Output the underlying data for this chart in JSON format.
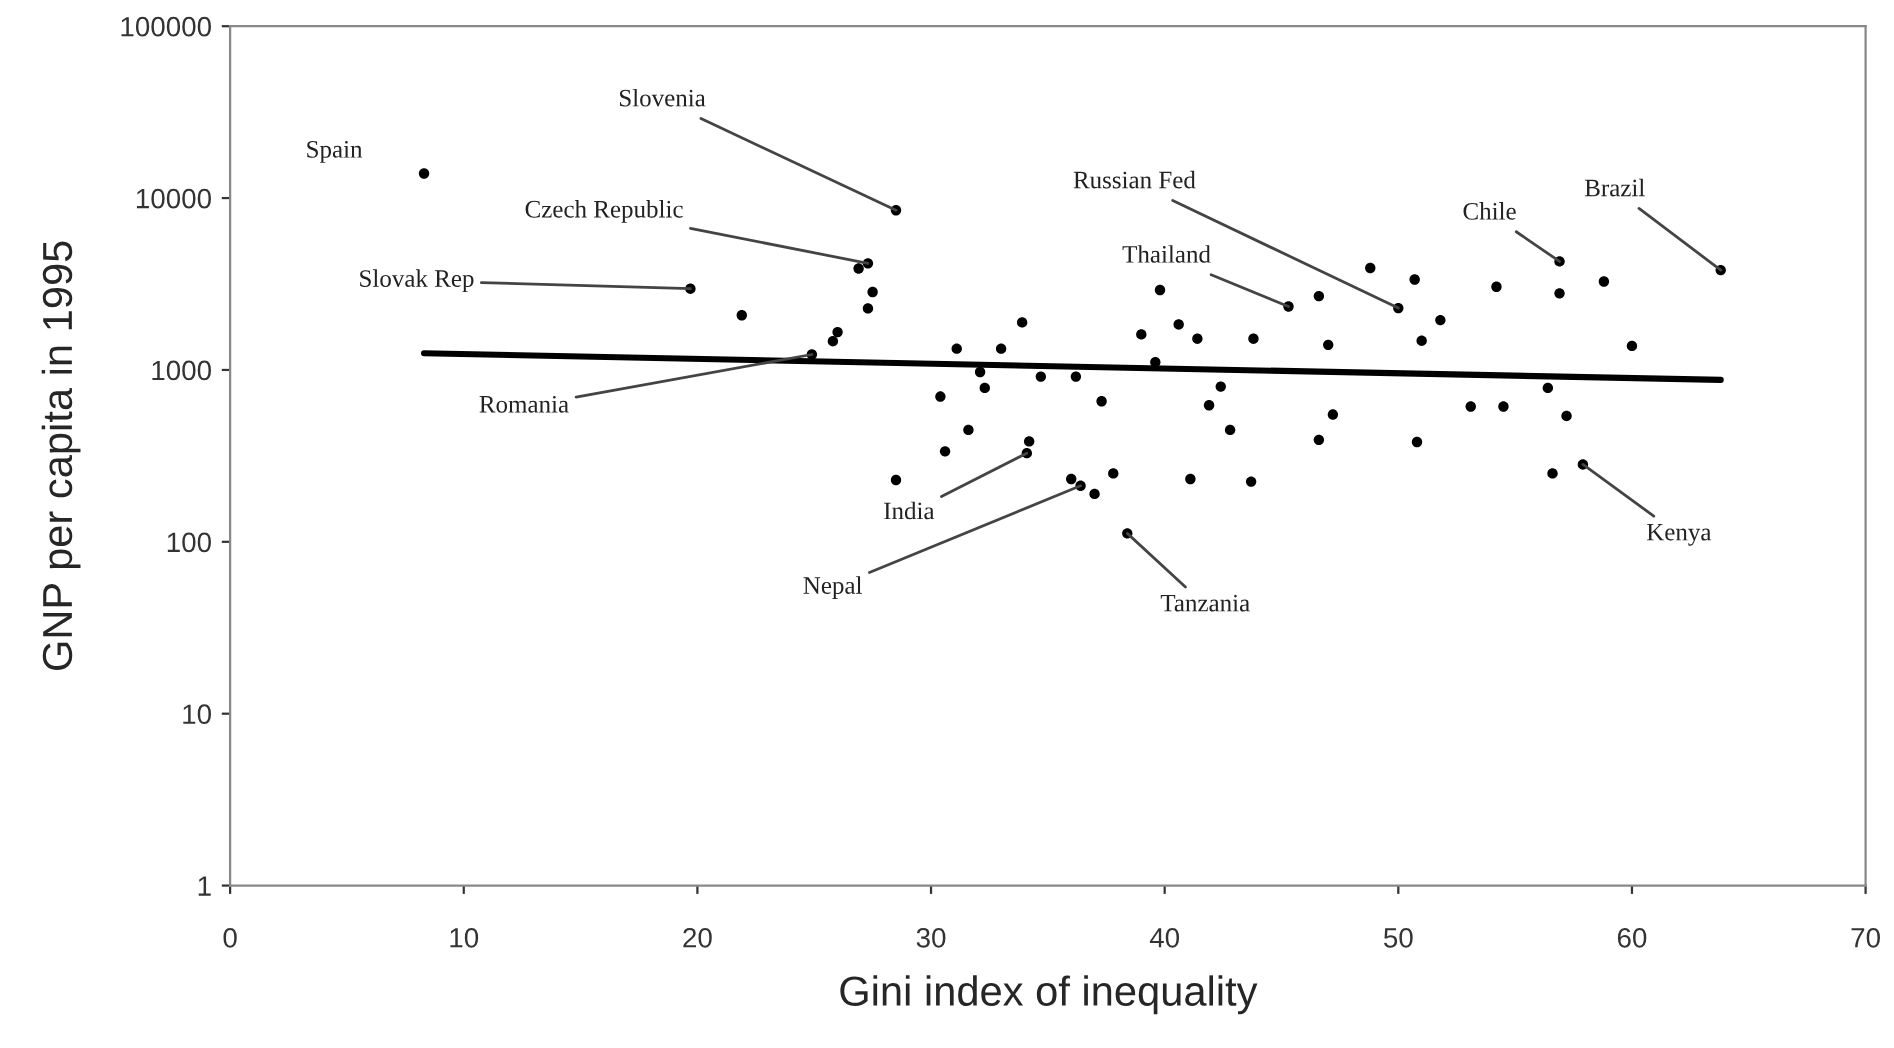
{
  "chart_data": {
    "type": "scatter",
    "xlabel": "Gini index of inequality",
    "ylabel": "GNP per capita in 1995",
    "xlim": [
      0,
      70
    ],
    "xticks": [
      0,
      10,
      20,
      30,
      40,
      50,
      60,
      70
    ],
    "ylim": [
      1,
      100000
    ],
    "yticks": [
      1,
      10,
      100,
      1000,
      10000,
      100000
    ],
    "log": "y",
    "grid": false,
    "marker": "circle",
    "series": [
      {
        "color": "#000000",
        "x": [
          8.3,
          28.5,
          26.9,
          27.3,
          27.5,
          27.3,
          19.7,
          21.9,
          26.0,
          25.8,
          24.9,
          39.8,
          39.0,
          40.6,
          41.4,
          39.6,
          33.9,
          31.1,
          33.0,
          32.1,
          32.3,
          30.4,
          34.7,
          36.2,
          37.3,
          31.6,
          30.6,
          34.2,
          34.1,
          43.8,
          45.3,
          46.6,
          47.0,
          48.8,
          50.0,
          42.4,
          41.9,
          42.8,
          47.2,
          46.6,
          50.7,
          54.2,
          56.9,
          56.9,
          58.8,
          63.8,
          51.8,
          51.0,
          60.0,
          56.4,
          53.1,
          54.5,
          57.2,
          50.8,
          56.6,
          57.9,
          28.5,
          36.0,
          36.4,
          37.0,
          37.8,
          38.4,
          41.1,
          43.7
        ],
        "values": [
          13900,
          8500,
          3890,
          4170,
          2840,
          2280,
          2970,
          2080,
          1660,
          1470,
          1230,
          2920,
          1610,
          1840,
          1520,
          1110,
          1890,
          1330,
          1330,
          973,
          786,
          700,
          915,
          915,
          657,
          448,
          336,
          384,
          328,
          1520,
          2340,
          2690,
          1400,
          3920,
          2290,
          800,
          623,
          448,
          550,
          392,
          3360,
          3050,
          4280,
          2790,
          3270,
          3810,
          1950,
          1480,
          1380,
          786,
          613,
          613,
          540,
          381,
          250,
          282,
          229,
          232,
          212,
          190,
          250,
          112,
          232,
          224
        ]
      },
      {
        "type": "line",
        "color": "#000000",
        "x": [
          8.3,
          63.8
        ],
        "values": [
          1250,
          875
        ],
        "marker": "none"
      }
    ],
    "annotations": [
      {
        "text": "Spain",
        "x": 8.3,
        "y": 13900
      },
      {
        "text": "Slovenia",
        "x": 28.5,
        "y": 8500
      },
      {
        "text": "Czech Republic",
        "x": 27.3,
        "y": 4170
      },
      {
        "text": "Slovak Rep",
        "x": 19.7,
        "y": 2970
      },
      {
        "text": "Romania",
        "x": 24.9,
        "y": 1230
      },
      {
        "text": "India",
        "x": 34.1,
        "y": 328
      },
      {
        "text": "Nepal",
        "x": 36.4,
        "y": 212
      },
      {
        "text": "Tanzania",
        "x": 38.4,
        "y": 112
      },
      {
        "text": "Thailand",
        "x": 45.3,
        "y": 2340
      },
      {
        "text": "Russian Fed",
        "x": 50.0,
        "y": 2290
      },
      {
        "text": "Chile",
        "x": 56.9,
        "y": 4280
      },
      {
        "text": "Brazil",
        "x": 63.8,
        "y": 3810
      },
      {
        "text": "Kenya",
        "x": 57.9,
        "y": 282
      }
    ]
  }
}
